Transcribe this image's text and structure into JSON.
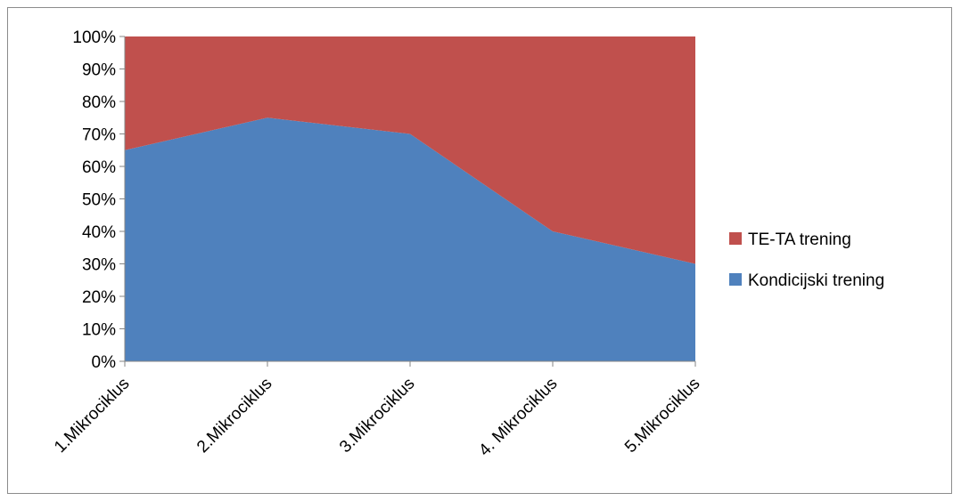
{
  "chart_data": {
    "type": "area",
    "stacked": "percent",
    "categories": [
      "1.Mikrociklus",
      "2.Mikrociklus",
      "3.Mikrociklus",
      "4. Mikrociklus",
      "5.Mikrociklus"
    ],
    "series": [
      {
        "name": "Kondicijski trening",
        "values": [
          65,
          75,
          70,
          40,
          30
        ],
        "color": "#4f81bd"
      },
      {
        "name": "TE-TA trening",
        "values": [
          35,
          25,
          30,
          60,
          70
        ],
        "color": "#c0504d"
      }
    ],
    "ylim": [
      0,
      100
    ],
    "yticks": [
      "0%",
      "10%",
      "20%",
      "30%",
      "40%",
      "50%",
      "60%",
      "70%",
      "80%",
      "90%",
      "100%"
    ],
    "grid": false,
    "legend": "right",
    "legend_order": [
      "TE-TA trening",
      "Kondicijski trening"
    ]
  }
}
